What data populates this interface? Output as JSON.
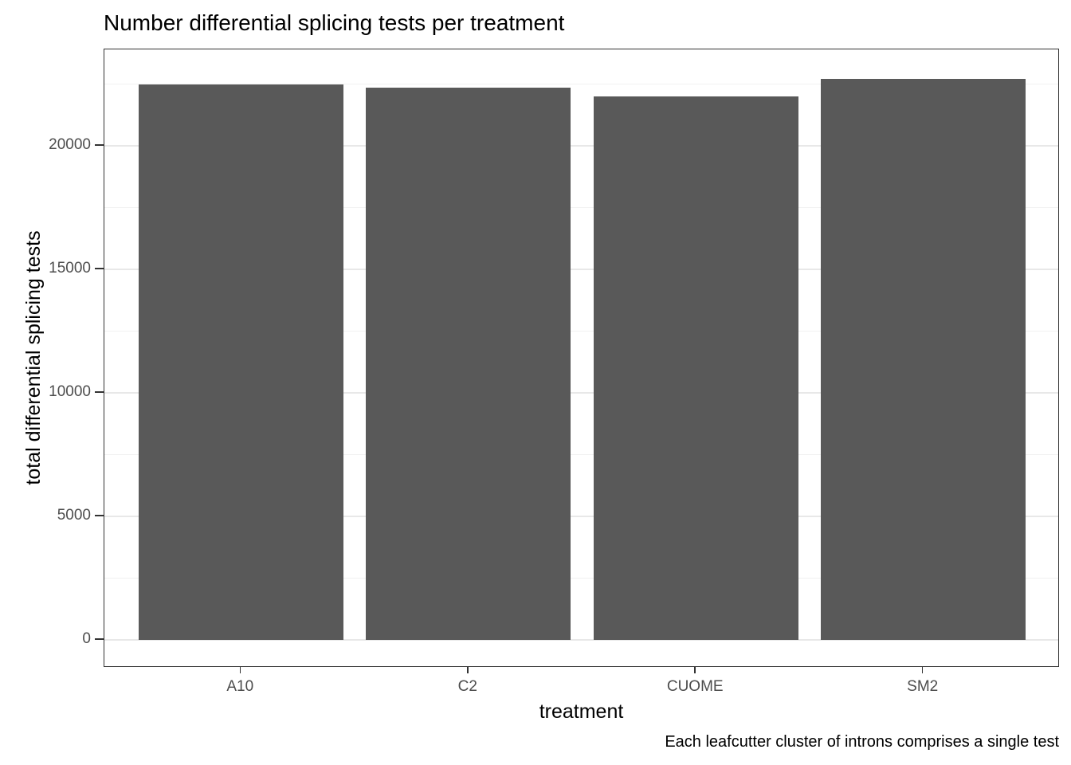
{
  "chart_data": {
    "type": "bar",
    "title": "Number differential splicing tests per treatment",
    "categories": [
      "A10",
      "C2",
      "CUOME",
      "SM2"
    ],
    "values": [
      22500,
      22350,
      22000,
      22700
    ],
    "xlabel": "treatment",
    "ylabel": "total differential splicing tests",
    "caption": "Each leafcutter cluster of introns comprises a single test",
    "y_ticks": [
      0,
      5000,
      10000,
      15000,
      20000
    ],
    "y_minor_ticks": [
      2500,
      7500,
      12500,
      17500,
      22500
    ],
    "ylim": [
      0,
      23835
    ],
    "grid": true,
    "legend": "none",
    "bar_color": "#595959",
    "panel_border_color": "#333333",
    "grid_major_color": "#e8e8e8",
    "grid_minor_color": "#f1f1f1",
    "axis_text_color": "#4d4d4d",
    "tick_color": "#333333",
    "text_color": "#000000"
  }
}
